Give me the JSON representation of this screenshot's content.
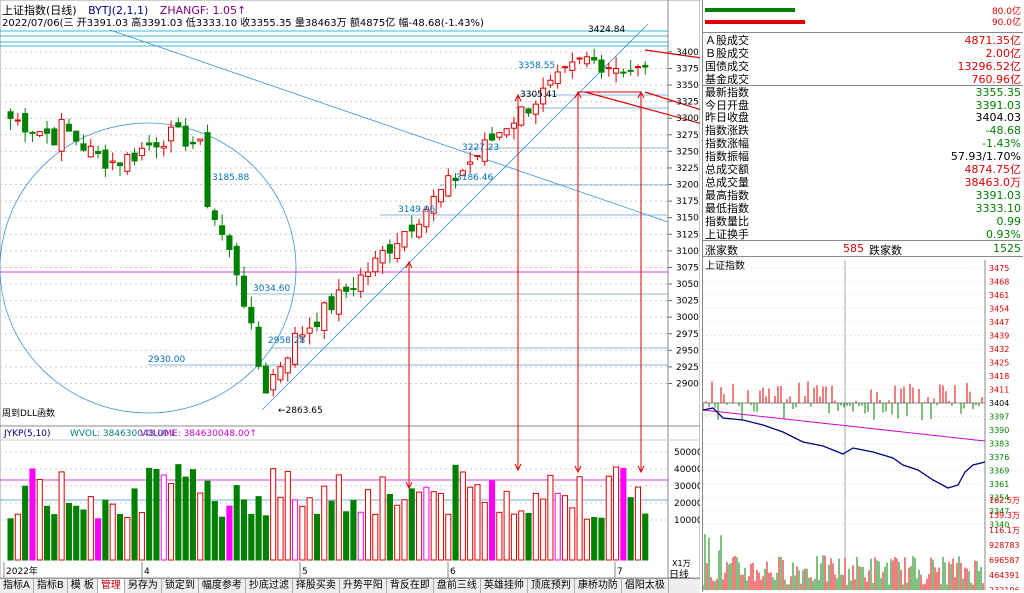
{
  "header": {
    "title": "上证指数(日线)",
    "indicator": "BYTJ(2,1,1)",
    "zhangf": "ZHANGF: 1.05↑",
    "info": "2022/07/06(三 开3391.03 高3391.03 低3333.10 收3355.35 量38463万 额4875亿 幅-48.68(-1.43%)"
  },
  "price_axis": [
    "3400",
    "3375",
    "3350",
    "3325",
    "3300",
    "3275",
    "3250",
    "3225",
    "3200",
    "3175",
    "3150",
    "3125",
    "3100",
    "3075",
    "3050",
    "3025",
    "3000",
    "2975",
    "2950",
    "2925",
    "2900"
  ],
  "annotations": {
    "high": "3424.84",
    "p3358": "3358.55",
    "p3305": "3305.41",
    "p3227": "3227.23",
    "p3186": "3186.46",
    "p3185": "3185.88",
    "p3149": "3149.06",
    "p3034": "3034.60",
    "p2958": "2958.28",
    "p2930": "2930.00",
    "p2863": "2863.65",
    "dll": "周到DLL函数"
  },
  "volume": {
    "header_jykp": "JYKP(5,10)",
    "header_wvol": "WVOL: 384630048.00↓",
    "header_volume": "VOLUME: 384630048.00↑",
    "axis": [
      "50000",
      "40000",
      "30000",
      "20000",
      "10000"
    ],
    "unit": "X1万"
  },
  "dates": [
    "2022年",
    "4",
    "5",
    "6",
    "7"
  ],
  "quote": {
    "bar_values": [
      "80.0亿",
      "90.0亿"
    ],
    "rows": [
      {
        "label": "Ａ股成交",
        "value": "4871.35亿",
        "color": "red"
      },
      {
        "label": "Ｂ股成交",
        "value": "2.00亿",
        "color": "red"
      },
      {
        "label": "国债成交",
        "value": "13296.52亿",
        "color": "red"
      },
      {
        "label": "基金成交",
        "value": "760.96亿",
        "color": "red"
      },
      {
        "label": "最新指数",
        "value": "3355.35",
        "color": "green"
      },
      {
        "label": "今日开盘",
        "value": "3391.03",
        "color": "green"
      },
      {
        "label": "昨日收盘",
        "value": "3404.03",
        "color": "black"
      },
      {
        "label": "指数涨跌",
        "value": "-48.68",
        "color": "green"
      },
      {
        "label": "指数涨幅",
        "value": "-1.43%",
        "color": "green"
      },
      {
        "label": "指数振幅",
        "value": "57.93/1.70%",
        "color": "black"
      },
      {
        "label": "总成交额",
        "value": "4874.75亿",
        "color": "red"
      },
      {
        "label": "总成交量",
        "value": "38463.0万",
        "color": "red"
      },
      {
        "label": "最高指数",
        "value": "3391.03",
        "color": "green"
      },
      {
        "label": "最低指数",
        "value": "3333.10",
        "color": "green"
      },
      {
        "label": "指数量比",
        "value": "0.99",
        "color": "green"
      },
      {
        "label": "上证换手",
        "value": "0.93%",
        "color": "green"
      }
    ],
    "rise_label": "涨家数",
    "rise": "585",
    "fall_label": "跌家数",
    "fall": "1525"
  },
  "intraday": {
    "title": "上证指数",
    "axis": [
      "3475",
      "3468",
      "3461",
      "3454",
      "3447",
      "3439",
      "3432",
      "3425",
      "3418",
      "3411",
      "3404",
      "3397",
      "3390",
      "3383",
      "3376",
      "3369",
      "3361",
      "3354",
      "3347",
      "3340"
    ],
    "vol_axis": [
      "162.5万",
      "139.3万",
      "116.1万",
      "928783",
      "696587",
      "464391",
      "232196"
    ]
  },
  "tabs": [
    "指标A",
    "指标B",
    "模 板",
    "管理",
    "另存为",
    "锁定到",
    "幅度参考",
    "抄底过滤",
    "择股买卖",
    "升势平阳",
    "背反在即",
    "盘前三线",
    "英雄挂帅",
    "顶底预判",
    "康桥功防",
    "倡阳太极"
  ],
  "active_tab": "管理",
  "bottom": {
    "period": "日线",
    "plus": "+",
    "minus": "-"
  }
}
